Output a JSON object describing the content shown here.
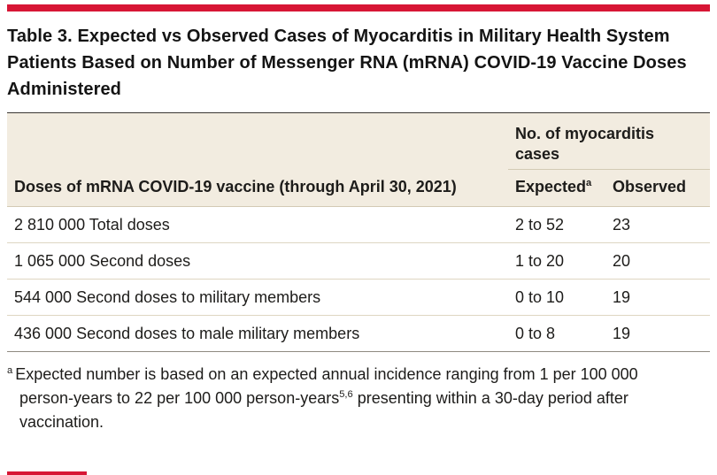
{
  "page": {
    "title": "Table 3. Expected vs Observed Cases of Myocarditis in Military Health System Patients Based on Number of Messenger RNA (mRNA) COVID-19 Vaccine Doses Administered"
  },
  "table": {
    "col1_header": "Doses of mRNA COVID-19 vaccine (through April 30, 2021)",
    "group_header": "No. of myocarditis cases",
    "expected_header": "Expected",
    "expected_superscript": "a",
    "observed_header": "Observed",
    "rows": [
      {
        "doses": "2 810 000 Total doses",
        "expected": "2 to 52",
        "observed": "23"
      },
      {
        "doses": "1 065 000 Second doses",
        "expected": "1 to 20",
        "observed": "20"
      },
      {
        "doses": "544 000 Second doses to military members",
        "expected": "0 to 10",
        "observed": "19"
      },
      {
        "doses": "436 000 Second doses to male military members",
        "expected": "0 to 8",
        "observed": "19"
      }
    ]
  },
  "footnote": {
    "marker": "a",
    "text_before_ref": "Expected number is based on an expected annual incidence ranging from 1 per 100 000 person-years to 22 per 100 000 person-years",
    "reference": "5,6",
    "text_after_ref": " presenting within a 30-day period after vaccination."
  },
  "colors": {
    "accent_red": "#d71635",
    "header_background": "#f2ece0",
    "row_divider": "#ded6c2",
    "text": "#1d1c1a"
  },
  "chart_data": {
    "type": "table",
    "title": "Table 3. Expected vs Observed Cases of Myocarditis in Military Health System Patients Based on Number of Messenger RNA (mRNA) COVID-19 Vaccine Doses Administered",
    "columns": [
      "Doses of mRNA COVID-19 vaccine (through April 30, 2021)",
      "Expected",
      "Observed"
    ],
    "rows": [
      [
        "2 810 000 Total doses",
        "2 to 52",
        "23"
      ],
      [
        "1 065 000 Second doses",
        "1 to 20",
        "20"
      ],
      [
        "544 000 Second doses to military members",
        "0 to 10",
        "19"
      ],
      [
        "436 000 Second doses to male military members",
        "0 to 8",
        "19"
      ]
    ]
  }
}
